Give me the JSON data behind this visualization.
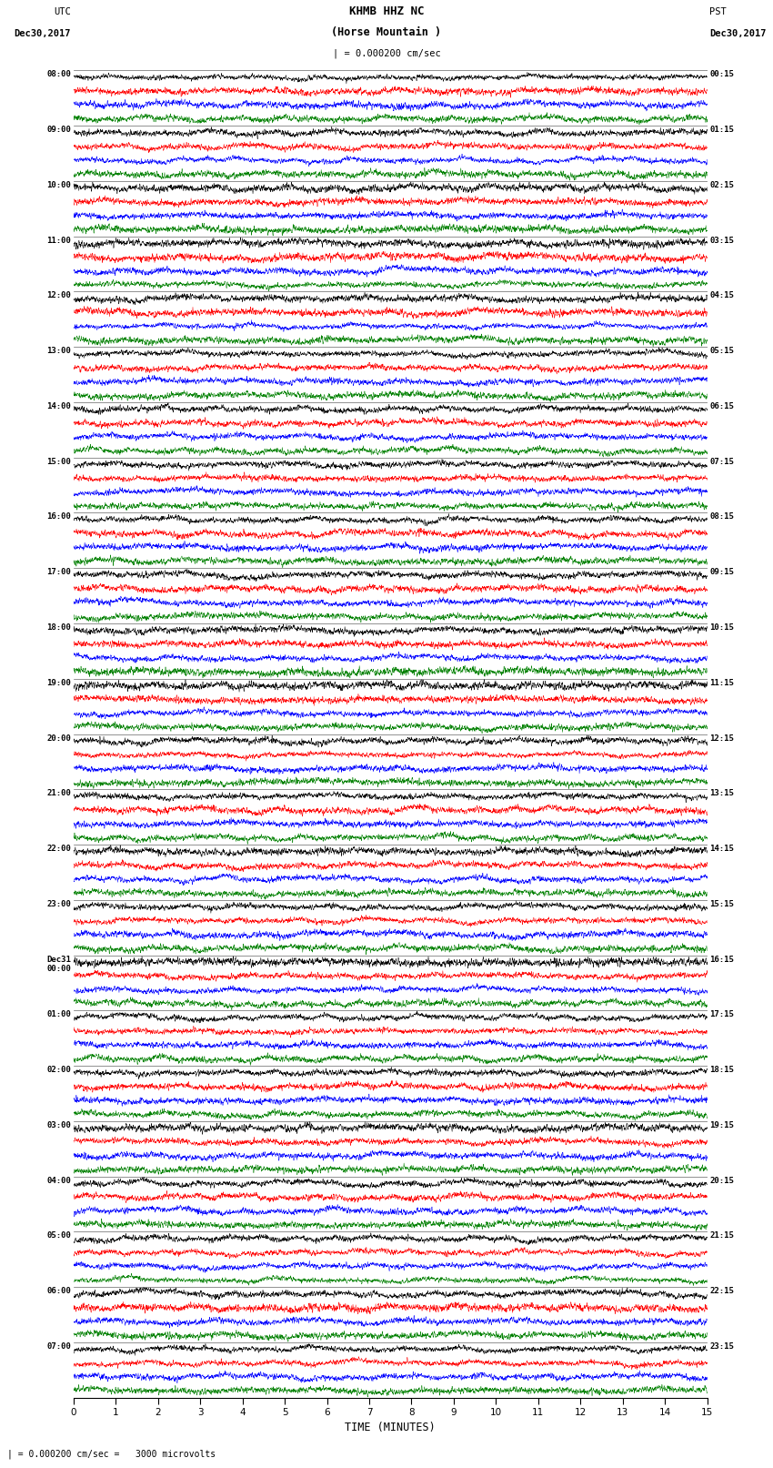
{
  "title_line1": "KHMB HHZ NC",
  "title_line2": "(Horse Mountain )",
  "scale_label": "| = 0.000200 cm/sec",
  "left_header_line1": "UTC",
  "left_header_line2": "Dec30,2017",
  "right_header_line1": "PST",
  "right_header_line2": "Dec30,2017",
  "bottom_label": "TIME (MINUTES)",
  "bottom_note": "| = 0.000200 cm/sec =   3000 microvolts",
  "xlabel_ticks": [
    0,
    1,
    2,
    3,
    4,
    5,
    6,
    7,
    8,
    9,
    10,
    11,
    12,
    13,
    14,
    15
  ],
  "utc_times": [
    "08:00",
    "09:00",
    "10:00",
    "11:00",
    "12:00",
    "13:00",
    "14:00",
    "15:00",
    "16:00",
    "17:00",
    "18:00",
    "19:00",
    "20:00",
    "21:00",
    "22:00",
    "23:00",
    "Dec31\n00:00",
    "01:00",
    "02:00",
    "03:00",
    "04:00",
    "05:00",
    "06:00",
    "07:00"
  ],
  "pst_times": [
    "00:15",
    "01:15",
    "02:15",
    "03:15",
    "04:15",
    "05:15",
    "06:15",
    "07:15",
    "08:15",
    "09:15",
    "10:15",
    "11:15",
    "12:15",
    "13:15",
    "14:15",
    "15:15",
    "16:15",
    "17:15",
    "18:15",
    "19:15",
    "20:15",
    "21:15",
    "22:15",
    "23:15"
  ],
  "colors": [
    "black",
    "red",
    "blue",
    "green"
  ],
  "n_groups": 24,
  "n_traces_per_group": 4,
  "x_min": 0,
  "x_max": 15,
  "fig_width": 8.5,
  "fig_height": 16.13,
  "dpi": 100,
  "bg_color": "white",
  "seed": 42
}
